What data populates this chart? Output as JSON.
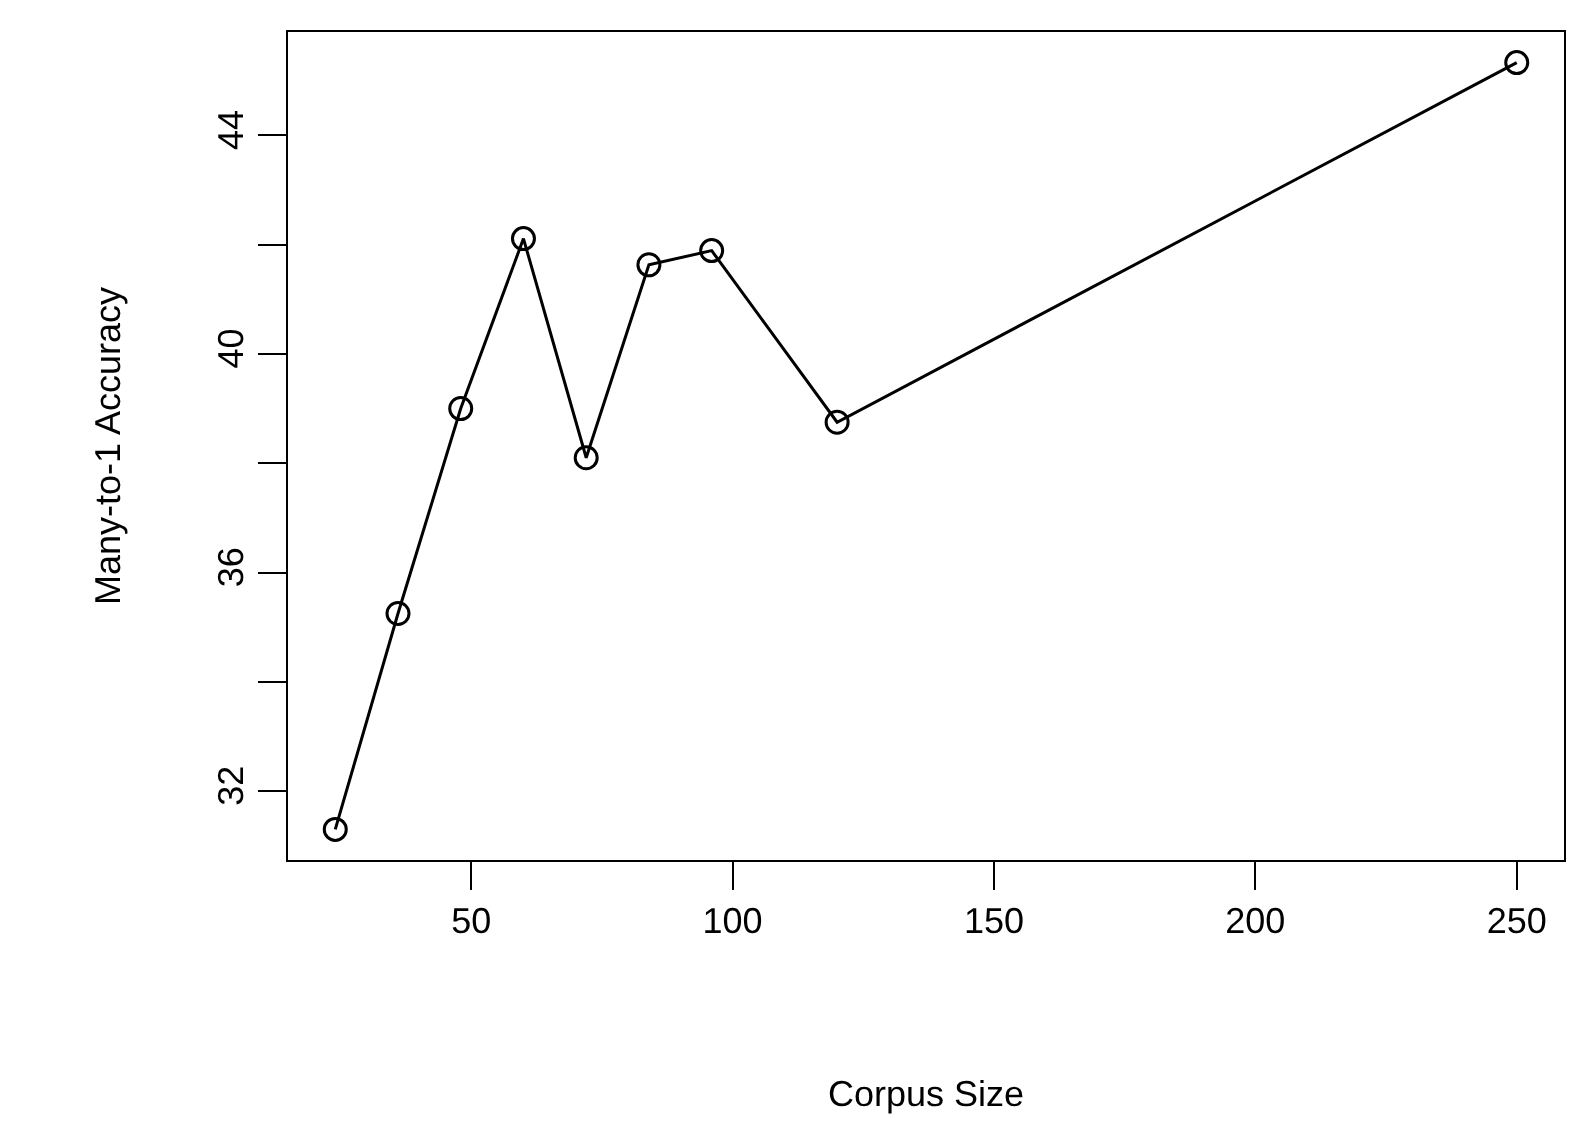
{
  "chart_data": {
    "type": "line",
    "xlabel": "Corpus Size",
    "ylabel": "Many-to-1 Accuracy",
    "x": [
      24,
      36,
      48,
      60,
      72,
      84,
      96,
      120,
      250
    ],
    "series": [
      {
        "color": "#000000",
        "values": [
          31.3,
          35.25,
          39.0,
          42.11,
          38.1,
          41.63,
          41.89,
          38.75,
          45.33
        ]
      }
    ],
    "xlim": [
      14.96,
      259.04
    ],
    "xticks": [
      50,
      100,
      150,
      200,
      250
    ],
    "ylim": [
      30.74,
      45.89
    ],
    "yticks": [
      32,
      {
        "value": 34,
        "label": null
      },
      36,
      {
        "value": 38,
        "label": null
      },
      40,
      {
        "value": 42,
        "label": null
      },
      44
    ],
    "marker": "circle",
    "line_style": "solid"
  }
}
